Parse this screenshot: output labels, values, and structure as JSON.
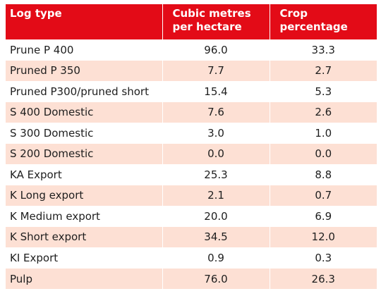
{
  "table": {
    "headers": [
      "Log type",
      "Cubic metres per hectare",
      "Crop percentage"
    ],
    "rows": [
      [
        "Prune P 400",
        "96.0",
        "33.3"
      ],
      [
        "Pruned P 350",
        "7.7",
        "2.7"
      ],
      [
        "Pruned P300/pruned short",
        "15.4",
        "5.3"
      ],
      [
        "S 400 Domestic",
        "7.6",
        "2.6"
      ],
      [
        "S 300 Domestic",
        "3.0",
        "1.0"
      ],
      [
        "S 200 Domestic",
        "0.0",
        "0.0"
      ],
      [
        "KA Export",
        "25.3",
        "8.8"
      ],
      [
        "K Long export",
        "2.1",
        "0.7"
      ],
      [
        "K Medium export",
        "20.0",
        "6.9"
      ],
      [
        "K Short export",
        "34.5",
        "12.0"
      ],
      [
        "KI Export",
        "0.9",
        "0.3"
      ],
      [
        "Pulp",
        "76.0",
        "26.3"
      ]
    ]
  },
  "colors": {
    "header_bg": "#e30b17",
    "header_text": "#ffffff",
    "row_alt_bg": "#fde0d4",
    "row_bg": "#ffffff"
  }
}
